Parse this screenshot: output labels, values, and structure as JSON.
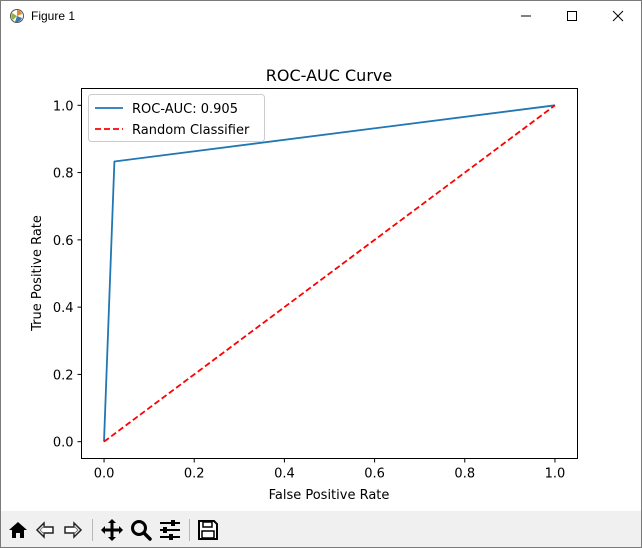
{
  "window": {
    "title": "Figure 1",
    "controls": {
      "minimize": "minimize",
      "maximize": "maximize",
      "close": "close"
    }
  },
  "toolbar": {
    "buttons": [
      {
        "name": "home",
        "icon": "home-icon"
      },
      {
        "name": "back",
        "icon": "back-arrow-icon"
      },
      {
        "name": "forward",
        "icon": "forward-arrow-icon"
      },
      {
        "name": "pan",
        "icon": "move-icon"
      },
      {
        "name": "zoom",
        "icon": "magnifier-icon"
      },
      {
        "name": "configure",
        "icon": "sliders-icon"
      },
      {
        "name": "save",
        "icon": "save-icon"
      }
    ]
  },
  "chart_data": {
    "type": "line",
    "title": "ROC-AUC Curve",
    "xlabel": "False Positive Rate",
    "ylabel": "True Positive Rate",
    "xlim": [
      -0.05,
      1.05
    ],
    "ylim": [
      -0.05,
      1.05
    ],
    "xticks": [
      0.0,
      0.2,
      0.4,
      0.6,
      0.8,
      1.0
    ],
    "xtick_labels": [
      "0.0",
      "0.2",
      "0.4",
      "0.6",
      "0.8",
      "1.0"
    ],
    "yticks": [
      0.0,
      0.2,
      0.4,
      0.6,
      0.8,
      1.0
    ],
    "ytick_labels": [
      "0.0",
      "0.2",
      "0.4",
      "0.6",
      "0.8",
      "1.0"
    ],
    "legend_position": "top-left",
    "series": [
      {
        "name": "ROC-AUC: 0.905",
        "x": [
          0.0,
          0.023,
          1.0
        ],
        "y": [
          0.0,
          0.833,
          1.0
        ],
        "color": "#1f77b4",
        "style": "solid"
      },
      {
        "name": "Random Classifier",
        "x": [
          0.0,
          1.0
        ],
        "y": [
          0.0,
          1.0
        ],
        "color": "#ff0000",
        "style": "dashed"
      }
    ]
  }
}
